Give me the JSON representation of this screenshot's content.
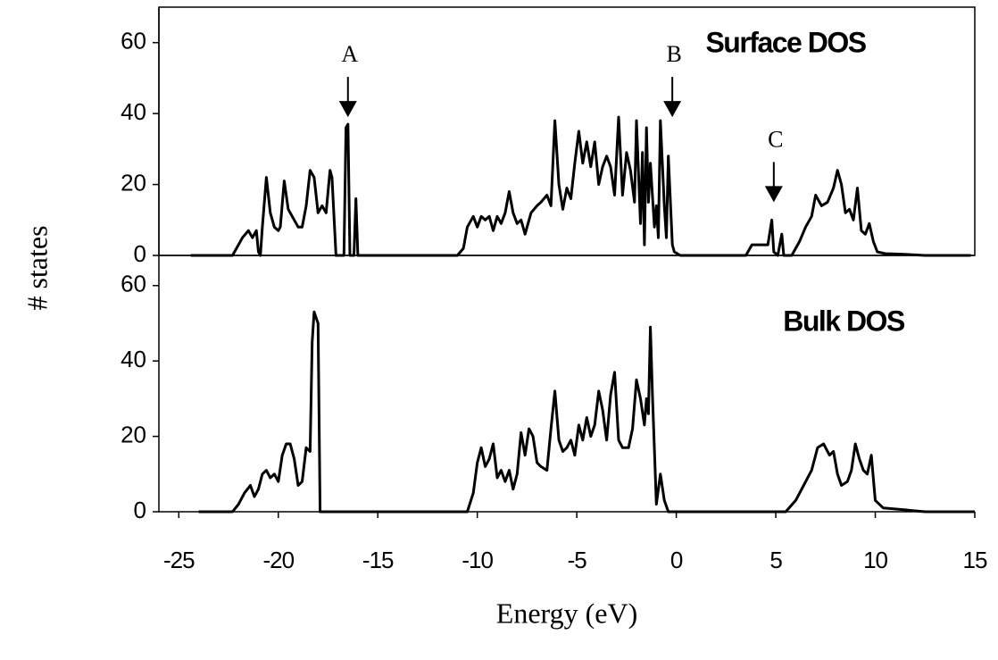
{
  "chart_data": [
    {
      "type": "line",
      "label": "Surface DOS",
      "ylabel": "# states",
      "xlim": [
        -26,
        15
      ],
      "ylim": [
        0,
        70
      ],
      "yticks": [
        0,
        20,
        40,
        60
      ],
      "frame": true,
      "annotations": [
        {
          "text": "A",
          "x": -16.5,
          "y": 39
        },
        {
          "text": "B",
          "x": -0.2,
          "y": 39
        },
        {
          "text": "C",
          "x": 4.9,
          "y": 15
        }
      ],
      "series": [
        {
          "color": "#000000",
          "x": [
            -24.4,
            -22.3,
            -21.8,
            -21.5,
            -21.3,
            -21.1,
            -21.0,
            -20.9,
            -20.8,
            -20.6,
            -20.4,
            -20.2,
            -20.0,
            -19.9,
            -19.7,
            -19.5,
            -19.2,
            -19.0,
            -18.8,
            -18.6,
            -18.4,
            -18.2,
            -18.0,
            -17.8,
            -17.6,
            -17.4,
            -17.3,
            -17.1,
            -16.7,
            -16.6,
            -16.5,
            -16.4,
            -16.2,
            -16.1,
            -16.0,
            -11.0,
            -10.7,
            -10.5,
            -10.2,
            -10.0,
            -9.8,
            -9.6,
            -9.4,
            -9.2,
            -9.0,
            -8.8,
            -8.6,
            -8.4,
            -8.2,
            -8.0,
            -7.8,
            -7.6,
            -7.3,
            -7.0,
            -6.8,
            -6.5,
            -6.3,
            -6.1,
            -5.9,
            -5.7,
            -5.5,
            -5.3,
            -5.1,
            -4.9,
            -4.7,
            -4.5,
            -4.3,
            -4.1,
            -3.9,
            -3.7,
            -3.5,
            -3.3,
            -3.1,
            -2.9,
            -2.7,
            -2.5,
            -2.3,
            -2.1,
            -2.0,
            -1.8,
            -1.7,
            -1.6,
            -1.5,
            -1.4,
            -1.3,
            -1.1,
            -1.0,
            -0.9,
            -0.8,
            -0.6,
            -0.5,
            -0.4,
            -0.2,
            -0.1,
            0.2,
            3.5,
            3.8,
            4.2,
            4.6,
            4.8,
            4.9,
            5.1,
            5.3,
            5.4,
            5.8,
            6.2,
            6.5,
            6.8,
            7.0,
            7.3,
            7.6,
            7.9,
            8.1,
            8.3,
            8.5,
            8.7,
            8.9,
            9.1,
            9.3,
            9.5,
            9.7,
            9.9,
            10.1,
            10.5,
            11.5,
            12.5,
            14.8
          ],
          "values": [
            0,
            0,
            5,
            7,
            5,
            7,
            1,
            0,
            8,
            22,
            12,
            8,
            7,
            8,
            21,
            13,
            10,
            8,
            8,
            14,
            24,
            22,
            12,
            14,
            12,
            24,
            22,
            0,
            0,
            36,
            37,
            0,
            0,
            16,
            0,
            0,
            2,
            8,
            11,
            8,
            11,
            10,
            11,
            7,
            11,
            9,
            12,
            18,
            12,
            9,
            10,
            6,
            12,
            14,
            15,
            17,
            14,
            38,
            20,
            13,
            19,
            16,
            26,
            35,
            26,
            32,
            25,
            32,
            20,
            25,
            28,
            25,
            17,
            39,
            17,
            29,
            24,
            15,
            38,
            9,
            29,
            3,
            36,
            15,
            26,
            8,
            14,
            5,
            38,
            14,
            5,
            28,
            3,
            1,
            0,
            0,
            3,
            3,
            3,
            10,
            1,
            0,
            6,
            0,
            0,
            4,
            8,
            11,
            17,
            14,
            15,
            19,
            24,
            20,
            12,
            13,
            10,
            19,
            7,
            6,
            9,
            4,
            1,
            0.5,
            0.3,
            0,
            0
          ]
        }
      ]
    },
    {
      "type": "line",
      "label": "Bulk DOS",
      "xlabel": "Energy (eV)",
      "xlim": [
        -26,
        15
      ],
      "ylim": [
        0,
        68
      ],
      "yticks": [
        0,
        20,
        40,
        60
      ],
      "xticks": [
        -25,
        -20,
        -15,
        -10,
        -5,
        0,
        5,
        10,
        15
      ],
      "frame": false,
      "series": [
        {
          "color": "#000000",
          "x": [
            -24,
            -22.3,
            -22.0,
            -21.7,
            -21.4,
            -21.2,
            -21.0,
            -20.8,
            -20.6,
            -20.4,
            -20.2,
            -20.0,
            -19.8,
            -19.6,
            -19.4,
            -19.2,
            -19.0,
            -18.8,
            -18.6,
            -18.4,
            -18.3,
            -18.2,
            -18.0,
            -17.9,
            -10.5,
            -10.2,
            -10.0,
            -9.8,
            -9.6,
            -9.4,
            -9.2,
            -9.0,
            -8.8,
            -8.6,
            -8.4,
            -8.2,
            -8.0,
            -7.8,
            -7.6,
            -7.4,
            -7.2,
            -7.0,
            -6.8,
            -6.5,
            -6.3,
            -6.1,
            -5.9,
            -5.7,
            -5.5,
            -5.3,
            -5.1,
            -4.9,
            -4.7,
            -4.5,
            -4.3,
            -4.1,
            -3.9,
            -3.7,
            -3.5,
            -3.3,
            -3.1,
            -2.9,
            -2.7,
            -2.4,
            -2.2,
            -2.0,
            -1.8,
            -1.6,
            -1.5,
            -1.4,
            -1.3,
            -1.2,
            -1.0,
            -0.8,
            -0.6,
            -0.4,
            5.5,
            6.0,
            6.4,
            6.8,
            7.1,
            7.4,
            7.7,
            7.9,
            8.1,
            8.3,
            8.6,
            8.8,
            9.0,
            9.2,
            9.4,
            9.6,
            9.8,
            10.0,
            10.4,
            11.5,
            12.5,
            15
          ],
          "values": [
            0,
            0,
            2,
            5,
            7,
            4,
            6,
            10,
            11,
            9,
            10,
            8,
            15,
            18,
            18,
            14,
            7,
            8,
            17,
            16,
            45,
            53,
            50,
            0,
            0,
            5,
            13,
            17,
            12,
            14,
            18,
            9,
            11,
            8,
            11,
            6,
            10,
            21,
            15,
            22,
            20,
            13,
            12,
            11,
            22,
            32,
            19,
            16,
            17,
            19,
            15,
            23,
            19,
            25,
            20,
            23,
            32,
            27,
            19,
            31,
            37,
            19,
            17,
            17,
            22,
            35,
            30,
            23,
            30,
            26,
            49,
            31,
            2,
            10,
            3,
            0,
            0,
            3,
            7,
            11,
            17,
            18,
            15,
            16,
            10,
            7,
            8,
            11,
            18,
            14,
            11,
            10,
            15,
            3,
            1,
            0.5,
            0,
            0
          ]
        }
      ]
    }
  ]
}
